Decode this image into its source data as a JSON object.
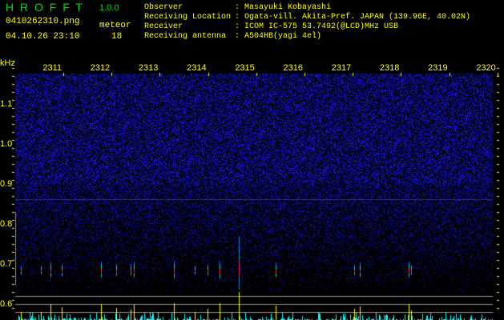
{
  "header": {
    "title": "H R O F F T",
    "version": "1.0.0",
    "filename": "0410262310.png",
    "datetime": "04.10.26 23:10",
    "meteor_label": "meteor",
    "meteor_count": "18"
  },
  "info": [
    {
      "label": "Observer",
      "value": "Masayuki Kobayashi"
    },
    {
      "label": "Receiving Location",
      "value": "Ogata-vill. Akita-Pref. JAPAN (139.96E, 40.02N)"
    },
    {
      "label": "Receiver",
      "value": "ICOM IC-575 53.7492(@LCD)MHz USB"
    },
    {
      "label": "Receiving antenna",
      "value": "A504HB(yagi 4el)"
    }
  ],
  "colors": {
    "text": "#ffff00",
    "title": "#00e000",
    "noise": "#1010ff",
    "histogram": "#00ffff",
    "meteor_bar": "#ffff00",
    "grid": "#909090"
  },
  "chart_data": {
    "type": "heatmap",
    "yunit": "kHz",
    "ylim": [
      0.58,
      1.2
    ],
    "yticks": [
      "1.1",
      "1.0",
      "0.9",
      "0.8",
      "0.7",
      "0.6"
    ],
    "xticks": [
      "2311",
      "2312",
      "2313",
      "2314",
      "2315",
      "2316",
      "2317",
      "2318",
      "2319",
      "2320"
    ],
    "xlim": [
      "23:10:00",
      "23:20:00"
    ],
    "echo_frequency_khz": 0.69,
    "meteor_echoes": [
      {
        "time": "23:10:07",
        "strength": 1.0
      },
      {
        "time": "23:10:32",
        "strength": 1.0
      },
      {
        "time": "23:10:44",
        "strength": 2.0
      },
      {
        "time": "23:10:58",
        "strength": 1.6
      },
      {
        "time": "23:11:47",
        "strength": 2.0
      },
      {
        "time": "23:12:06",
        "strength": 1.5
      },
      {
        "time": "23:12:24",
        "strength": 1.3
      },
      {
        "time": "23:12:28",
        "strength": 1.9
      },
      {
        "time": "23:13:18",
        "strength": 2.1
      },
      {
        "time": "23:13:44",
        "strength": 1.0
      },
      {
        "time": "23:14:00",
        "strength": 1.4
      },
      {
        "time": "23:14:15",
        "strength": 2.1
      },
      {
        "time": "23:14:39",
        "strength": 3.5
      },
      {
        "time": "23:15:25",
        "strength": 1.8
      },
      {
        "time": "23:17:03",
        "strength": 1.4
      },
      {
        "time": "23:17:10",
        "strength": 1.7
      },
      {
        "time": "23:18:11",
        "strength": 2.0
      },
      {
        "time": "23:18:14",
        "strength": 1.2
      }
    ]
  }
}
